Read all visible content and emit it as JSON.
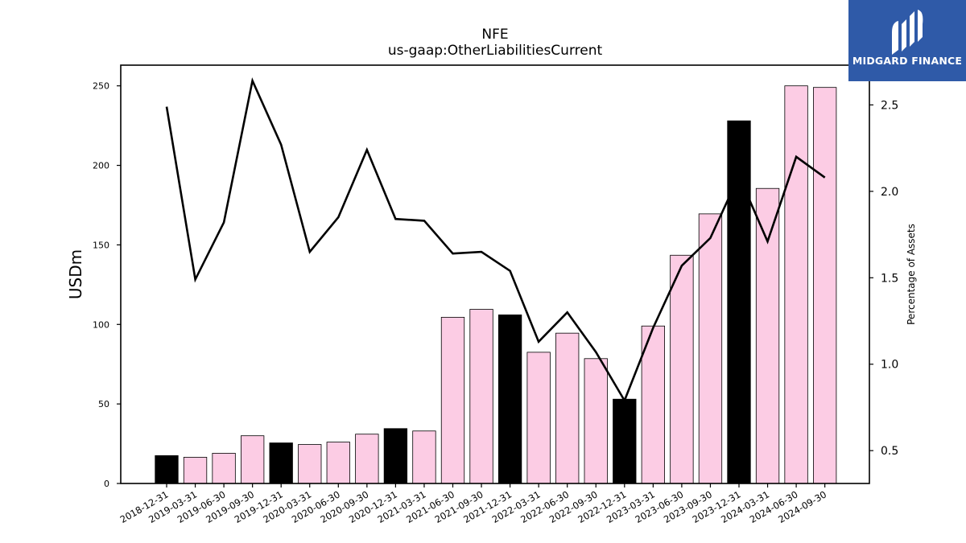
{
  "chart_data": {
    "type": "bar",
    "title": "NFE",
    "subtitle": "us-gaap:OtherLiabilitiesCurrent",
    "ylabel": "USDm",
    "y2label": "Percentage of Assets",
    "ylim": [
      0,
      263
    ],
    "y2lim": [
      0.31,
      2.73
    ],
    "yticks": [
      "0",
      "50",
      "100",
      "150",
      "200",
      "250"
    ],
    "y2ticks": [
      "0.5",
      "1.0",
      "1.5",
      "2.0",
      "2.5"
    ],
    "categories": [
      "2018-12-31",
      "2019-03-31",
      "2019-06-30",
      "2019-09-30",
      "2019-12-31",
      "2020-03-31",
      "2020-06-30",
      "2020-09-30",
      "2020-12-31",
      "2021-03-31",
      "2021-06-30",
      "2021-09-30",
      "2021-12-31",
      "2022-03-31",
      "2022-06-30",
      "2022-09-30",
      "2022-12-31",
      "2023-03-31",
      "2023-06-30",
      "2023-09-30",
      "2023-12-31",
      "2024-03-31",
      "2024-06-30",
      "2024-09-30"
    ],
    "series": [
      {
        "kind": "bar",
        "values": [
          17.5,
          16.5,
          19,
          30,
          25.5,
          24.5,
          26,
          31,
          34.5,
          33,
          104.5,
          109.5,
          106,
          82.5,
          94.5,
          78.5,
          53,
          99,
          143.5,
          169.5,
          228,
          185.5,
          250,
          249
        ],
        "colors": [
          "#000000",
          "#fccce4",
          "#fccce4",
          "#fccce4",
          "#000000",
          "#fccce4",
          "#fccce4",
          "#fccce4",
          "#000000",
          "#fccce4",
          "#fccce4",
          "#fccce4",
          "#000000",
          "#fccce4",
          "#fccce4",
          "#fccce4",
          "#000000",
          "#fccce4",
          "#fccce4",
          "#fccce4",
          "#000000",
          "#fccce4",
          "#fccce4",
          "#fccce4"
        ]
      },
      {
        "kind": "line",
        "axis": "right",
        "color": "#000000",
        "values": [
          2.49,
          1.49,
          1.82,
          2.64,
          2.27,
          1.65,
          1.85,
          2.24,
          1.84,
          1.83,
          1.64,
          1.65,
          1.54,
          1.13,
          1.3,
          1.07,
          0.79,
          1.21,
          1.57,
          1.73,
          2.09,
          1.71,
          2.2,
          2.08
        ]
      }
    ],
    "grid": false
  },
  "logo": {
    "text": "MIDGARD FINANCE",
    "bg_color": "#2f5aa8"
  }
}
